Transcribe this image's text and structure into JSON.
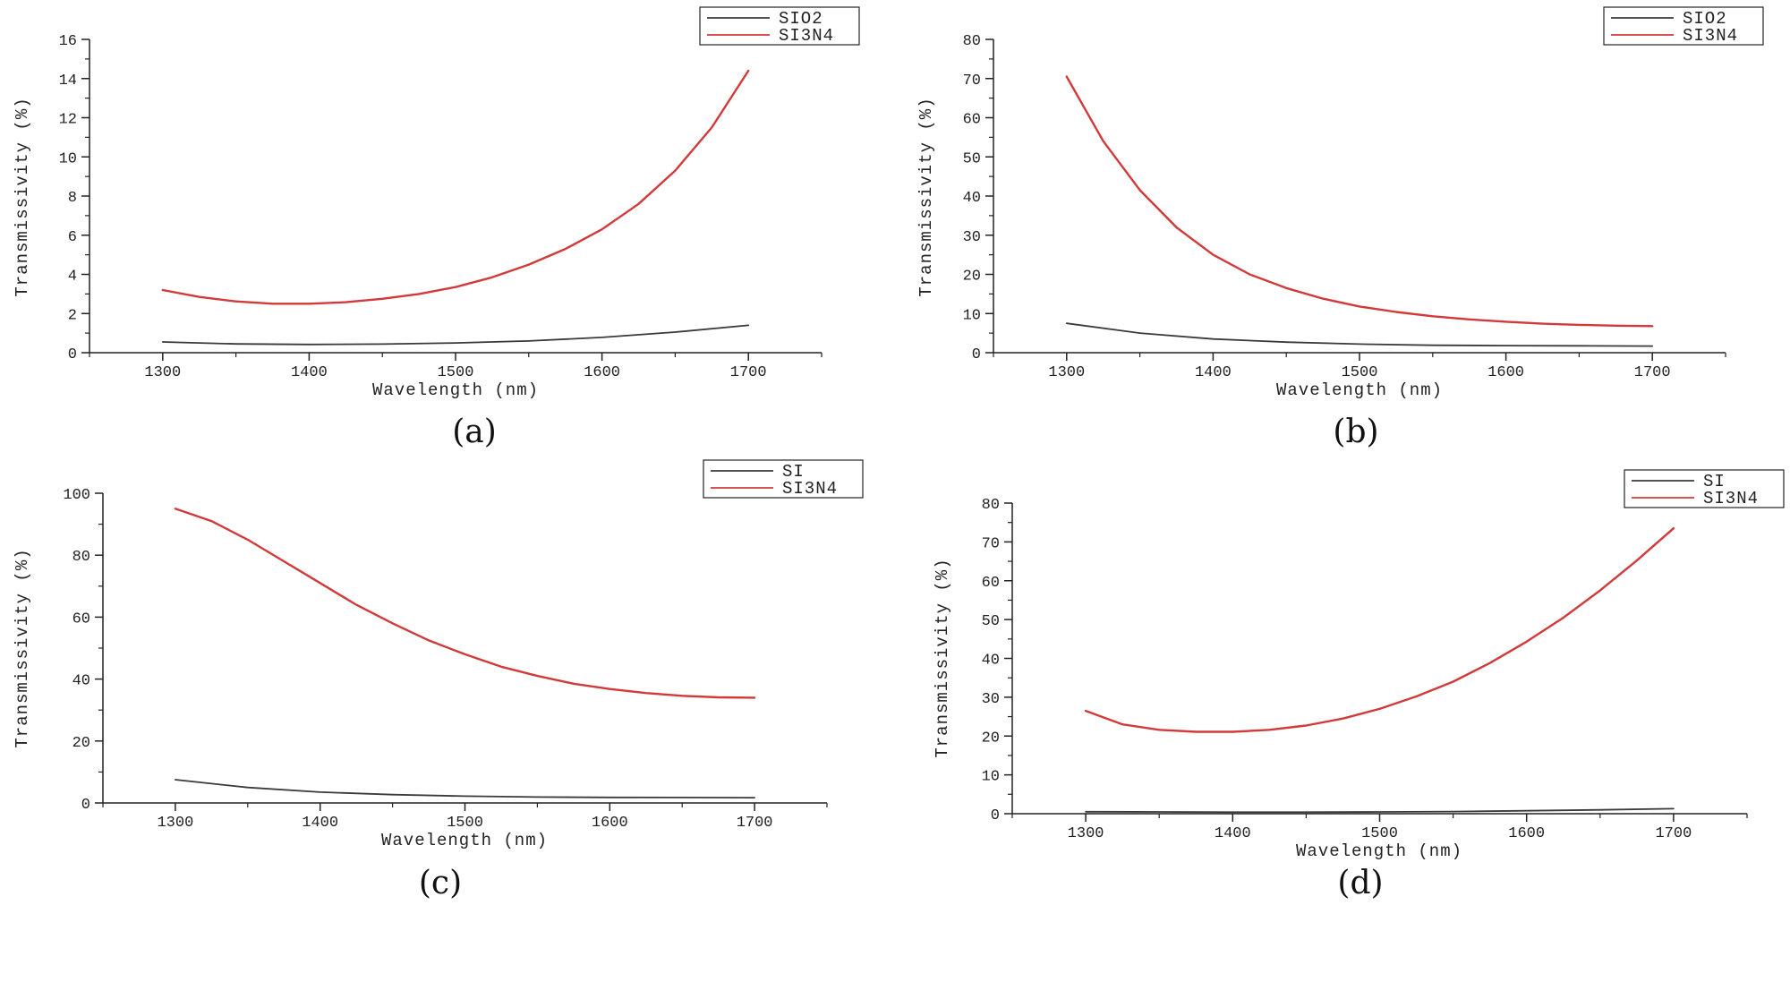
{
  "figure": {
    "colors": {
      "black": "#3a3a3a",
      "red": "#d23a3a",
      "axis": "#222222"
    }
  },
  "chart_data": [
    {
      "type": "line",
      "panel_label": "(a)",
      "xlabel": "Wavelength (nm)",
      "ylabel": "Transmissivity (%)",
      "xlim": [
        1250,
        1750
      ],
      "ylim": [
        0,
        16
      ],
      "xticks": [
        1300,
        1400,
        1500,
        1600,
        1700
      ],
      "yticks": [
        0,
        2,
        4,
        6,
        8,
        10,
        12,
        14,
        16
      ],
      "legend_position": "top-right",
      "series": [
        {
          "name": "SIO2",
          "color": "#3a3a3a",
          "x": [
            1300,
            1350,
            1400,
            1450,
            1500,
            1550,
            1600,
            1650,
            1700
          ],
          "y": [
            0.55,
            0.45,
            0.42,
            0.44,
            0.5,
            0.6,
            0.78,
            1.05,
            1.4
          ]
        },
        {
          "name": "SI3N4",
          "color": "#d23a3a",
          "x": [
            1300,
            1325,
            1350,
            1375,
            1400,
            1425,
            1450,
            1475,
            1500,
            1525,
            1550,
            1575,
            1600,
            1625,
            1650,
            1675,
            1700
          ],
          "y": [
            3.2,
            2.85,
            2.62,
            2.5,
            2.5,
            2.58,
            2.75,
            3.0,
            3.35,
            3.85,
            4.5,
            5.3,
            6.3,
            7.6,
            9.3,
            11.5,
            14.4
          ]
        }
      ]
    },
    {
      "type": "line",
      "panel_label": "(b)",
      "xlabel": "Wavelength (nm)",
      "ylabel": "Transmissivity (%)",
      "xlim": [
        1250,
        1750
      ],
      "ylim": [
        0,
        80
      ],
      "xticks": [
        1300,
        1400,
        1500,
        1600,
        1700
      ],
      "yticks": [
        0,
        10,
        20,
        30,
        40,
        50,
        60,
        70,
        80
      ],
      "legend_position": "top-right",
      "series": [
        {
          "name": "SIO2",
          "color": "#3a3a3a",
          "x": [
            1300,
            1350,
            1400,
            1450,
            1500,
            1550,
            1600,
            1650,
            1700
          ],
          "y": [
            7.5,
            5.0,
            3.5,
            2.7,
            2.2,
            1.9,
            1.8,
            1.75,
            1.7
          ]
        },
        {
          "name": "SI3N4",
          "color": "#d23a3a",
          "x": [
            1300,
            1325,
            1350,
            1375,
            1400,
            1425,
            1450,
            1475,
            1500,
            1525,
            1550,
            1575,
            1600,
            1625,
            1650,
            1675,
            1700
          ],
          "y": [
            70.5,
            54,
            41.5,
            32,
            25,
            20,
            16.5,
            13.8,
            11.8,
            10.4,
            9.3,
            8.5,
            7.9,
            7.4,
            7.1,
            6.9,
            6.8
          ]
        }
      ]
    },
    {
      "type": "line",
      "panel_label": "(c)",
      "xlabel": "Wavelength (nm)",
      "ylabel": "Transmissivity (%)",
      "xlim": [
        1250,
        1750
      ],
      "ylim": [
        0,
        100
      ],
      "xticks": [
        1300,
        1400,
        1500,
        1600,
        1700
      ],
      "yticks": [
        0,
        20,
        40,
        60,
        80,
        100
      ],
      "legend_position": "top-right",
      "series": [
        {
          "name": "SI",
          "color": "#3a3a3a",
          "x": [
            1300,
            1350,
            1400,
            1450,
            1500,
            1550,
            1600,
            1650,
            1700
          ],
          "y": [
            7.5,
            5.0,
            3.5,
            2.7,
            2.2,
            1.9,
            1.8,
            1.75,
            1.7
          ]
        },
        {
          "name": "SI3N4",
          "color": "#d23a3a",
          "x": [
            1300,
            1325,
            1350,
            1375,
            1400,
            1425,
            1450,
            1475,
            1500,
            1525,
            1550,
            1575,
            1600,
            1625,
            1650,
            1675,
            1700
          ],
          "y": [
            95,
            91,
            85,
            78,
            71,
            64,
            58,
            52.5,
            48,
            44,
            41,
            38.5,
            36.8,
            35.5,
            34.6,
            34.1,
            34
          ]
        }
      ]
    },
    {
      "type": "line",
      "panel_label": "(d)",
      "xlabel": "Wavelength (nm)",
      "ylabel": "Transmissivity (%)",
      "xlim": [
        1250,
        1750
      ],
      "ylim": [
        0,
        80
      ],
      "xticks": [
        1300,
        1400,
        1500,
        1600,
        1700
      ],
      "yticks": [
        0,
        10,
        20,
        30,
        40,
        50,
        60,
        70,
        80
      ],
      "legend_position": "top-right",
      "series": [
        {
          "name": "SI",
          "color": "#3a3a3a",
          "x": [
            1300,
            1350,
            1400,
            1450,
            1500,
            1550,
            1600,
            1650,
            1700
          ],
          "y": [
            0.5,
            0.45,
            0.4,
            0.4,
            0.45,
            0.55,
            0.75,
            1.0,
            1.3
          ]
        },
        {
          "name": "SI3N4",
          "color": "#d23a3a",
          "x": [
            1300,
            1325,
            1350,
            1375,
            1400,
            1425,
            1450,
            1475,
            1500,
            1525,
            1550,
            1575,
            1600,
            1625,
            1650,
            1675,
            1700
          ],
          "y": [
            26.5,
            23,
            21.6,
            21.1,
            21.1,
            21.6,
            22.7,
            24.5,
            27,
            30.2,
            34,
            38.8,
            44.3,
            50.5,
            57.5,
            65.2,
            73.5
          ]
        }
      ]
    }
  ]
}
